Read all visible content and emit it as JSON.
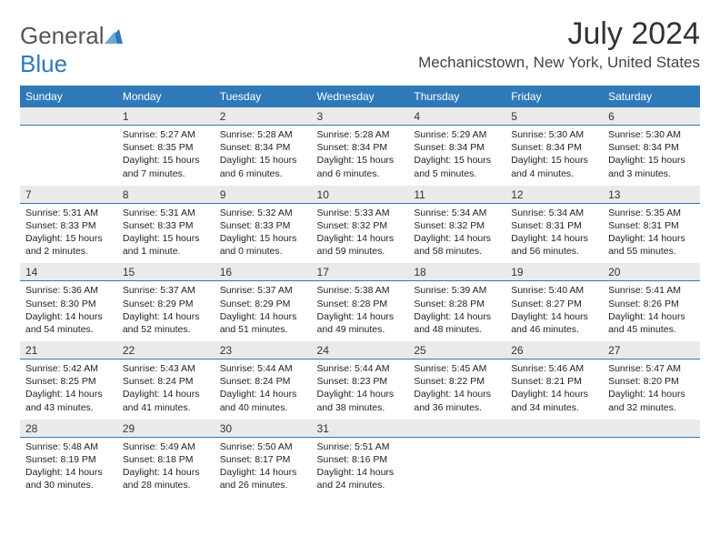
{
  "brand": {
    "name_a": "General",
    "name_b": "Blue"
  },
  "title": "July 2024",
  "location": "Mechanicstown, New York, United States",
  "colors": {
    "accent": "#2f79b9",
    "header_text": "#ffffff",
    "daynum_bg": "#eaeaea",
    "body_bg": "#ffffff",
    "text": "#222222"
  },
  "day_labels": [
    "Sunday",
    "Monday",
    "Tuesday",
    "Wednesday",
    "Thursday",
    "Friday",
    "Saturday"
  ],
  "weeks": [
    {
      "nums": [
        "",
        "1",
        "2",
        "3",
        "4",
        "5",
        "6"
      ],
      "info": [
        null,
        {
          "sunrise": "Sunrise: 5:27 AM",
          "sunset": "Sunset: 8:35 PM",
          "d1": "Daylight: 15 hours",
          "d2": "and 7 minutes."
        },
        {
          "sunrise": "Sunrise: 5:28 AM",
          "sunset": "Sunset: 8:34 PM",
          "d1": "Daylight: 15 hours",
          "d2": "and 6 minutes."
        },
        {
          "sunrise": "Sunrise: 5:28 AM",
          "sunset": "Sunset: 8:34 PM",
          "d1": "Daylight: 15 hours",
          "d2": "and 6 minutes."
        },
        {
          "sunrise": "Sunrise: 5:29 AM",
          "sunset": "Sunset: 8:34 PM",
          "d1": "Daylight: 15 hours",
          "d2": "and 5 minutes."
        },
        {
          "sunrise": "Sunrise: 5:30 AM",
          "sunset": "Sunset: 8:34 PM",
          "d1": "Daylight: 15 hours",
          "d2": "and 4 minutes."
        },
        {
          "sunrise": "Sunrise: 5:30 AM",
          "sunset": "Sunset: 8:34 PM",
          "d1": "Daylight: 15 hours",
          "d2": "and 3 minutes."
        }
      ]
    },
    {
      "nums": [
        "7",
        "8",
        "9",
        "10",
        "11",
        "12",
        "13"
      ],
      "info": [
        {
          "sunrise": "Sunrise: 5:31 AM",
          "sunset": "Sunset: 8:33 PM",
          "d1": "Daylight: 15 hours",
          "d2": "and 2 minutes."
        },
        {
          "sunrise": "Sunrise: 5:31 AM",
          "sunset": "Sunset: 8:33 PM",
          "d1": "Daylight: 15 hours",
          "d2": "and 1 minute."
        },
        {
          "sunrise": "Sunrise: 5:32 AM",
          "sunset": "Sunset: 8:33 PM",
          "d1": "Daylight: 15 hours",
          "d2": "and 0 minutes."
        },
        {
          "sunrise": "Sunrise: 5:33 AM",
          "sunset": "Sunset: 8:32 PM",
          "d1": "Daylight: 14 hours",
          "d2": "and 59 minutes."
        },
        {
          "sunrise": "Sunrise: 5:34 AM",
          "sunset": "Sunset: 8:32 PM",
          "d1": "Daylight: 14 hours",
          "d2": "and 58 minutes."
        },
        {
          "sunrise": "Sunrise: 5:34 AM",
          "sunset": "Sunset: 8:31 PM",
          "d1": "Daylight: 14 hours",
          "d2": "and 56 minutes."
        },
        {
          "sunrise": "Sunrise: 5:35 AM",
          "sunset": "Sunset: 8:31 PM",
          "d1": "Daylight: 14 hours",
          "d2": "and 55 minutes."
        }
      ]
    },
    {
      "nums": [
        "14",
        "15",
        "16",
        "17",
        "18",
        "19",
        "20"
      ],
      "info": [
        {
          "sunrise": "Sunrise: 5:36 AM",
          "sunset": "Sunset: 8:30 PM",
          "d1": "Daylight: 14 hours",
          "d2": "and 54 minutes."
        },
        {
          "sunrise": "Sunrise: 5:37 AM",
          "sunset": "Sunset: 8:29 PM",
          "d1": "Daylight: 14 hours",
          "d2": "and 52 minutes."
        },
        {
          "sunrise": "Sunrise: 5:37 AM",
          "sunset": "Sunset: 8:29 PM",
          "d1": "Daylight: 14 hours",
          "d2": "and 51 minutes."
        },
        {
          "sunrise": "Sunrise: 5:38 AM",
          "sunset": "Sunset: 8:28 PM",
          "d1": "Daylight: 14 hours",
          "d2": "and 49 minutes."
        },
        {
          "sunrise": "Sunrise: 5:39 AM",
          "sunset": "Sunset: 8:28 PM",
          "d1": "Daylight: 14 hours",
          "d2": "and 48 minutes."
        },
        {
          "sunrise": "Sunrise: 5:40 AM",
          "sunset": "Sunset: 8:27 PM",
          "d1": "Daylight: 14 hours",
          "d2": "and 46 minutes."
        },
        {
          "sunrise": "Sunrise: 5:41 AM",
          "sunset": "Sunset: 8:26 PM",
          "d1": "Daylight: 14 hours",
          "d2": "and 45 minutes."
        }
      ]
    },
    {
      "nums": [
        "21",
        "22",
        "23",
        "24",
        "25",
        "26",
        "27"
      ],
      "info": [
        {
          "sunrise": "Sunrise: 5:42 AM",
          "sunset": "Sunset: 8:25 PM",
          "d1": "Daylight: 14 hours",
          "d2": "and 43 minutes."
        },
        {
          "sunrise": "Sunrise: 5:43 AM",
          "sunset": "Sunset: 8:24 PM",
          "d1": "Daylight: 14 hours",
          "d2": "and 41 minutes."
        },
        {
          "sunrise": "Sunrise: 5:44 AM",
          "sunset": "Sunset: 8:24 PM",
          "d1": "Daylight: 14 hours",
          "d2": "and 40 minutes."
        },
        {
          "sunrise": "Sunrise: 5:44 AM",
          "sunset": "Sunset: 8:23 PM",
          "d1": "Daylight: 14 hours",
          "d2": "and 38 minutes."
        },
        {
          "sunrise": "Sunrise: 5:45 AM",
          "sunset": "Sunset: 8:22 PM",
          "d1": "Daylight: 14 hours",
          "d2": "and 36 minutes."
        },
        {
          "sunrise": "Sunrise: 5:46 AM",
          "sunset": "Sunset: 8:21 PM",
          "d1": "Daylight: 14 hours",
          "d2": "and 34 minutes."
        },
        {
          "sunrise": "Sunrise: 5:47 AM",
          "sunset": "Sunset: 8:20 PM",
          "d1": "Daylight: 14 hours",
          "d2": "and 32 minutes."
        }
      ]
    },
    {
      "nums": [
        "28",
        "29",
        "30",
        "31",
        "",
        "",
        ""
      ],
      "info": [
        {
          "sunrise": "Sunrise: 5:48 AM",
          "sunset": "Sunset: 8:19 PM",
          "d1": "Daylight: 14 hours",
          "d2": "and 30 minutes."
        },
        {
          "sunrise": "Sunrise: 5:49 AM",
          "sunset": "Sunset: 8:18 PM",
          "d1": "Daylight: 14 hours",
          "d2": "and 28 minutes."
        },
        {
          "sunrise": "Sunrise: 5:50 AM",
          "sunset": "Sunset: 8:17 PM",
          "d1": "Daylight: 14 hours",
          "d2": "and 26 minutes."
        },
        {
          "sunrise": "Sunrise: 5:51 AM",
          "sunset": "Sunset: 8:16 PM",
          "d1": "Daylight: 14 hours",
          "d2": "and 24 minutes."
        },
        null,
        null,
        null
      ]
    }
  ]
}
